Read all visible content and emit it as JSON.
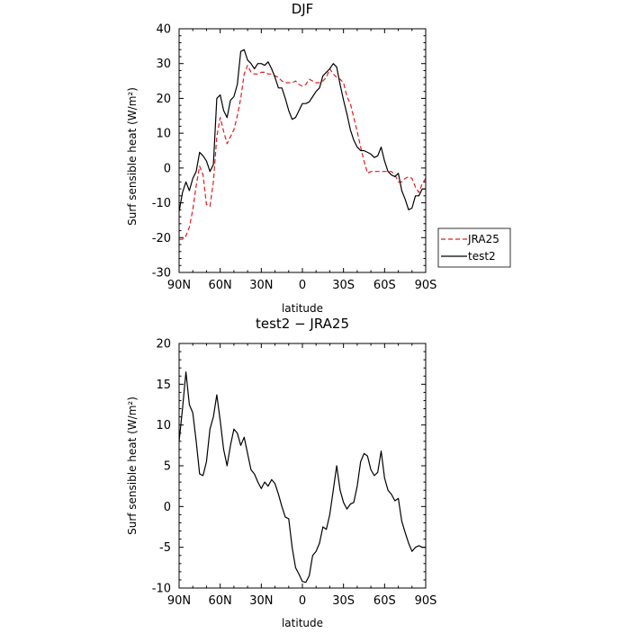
{
  "chart_data": [
    {
      "type": "line",
      "title": "DJF",
      "xlabel": "latitude",
      "ylabel": "Surf sensible heat (W/m²)",
      "xlim": [
        -90,
        90
      ],
      "ylim": [
        -30,
        40
      ],
      "xticks": [
        -90,
        -60,
        -30,
        0,
        30,
        60,
        90
      ],
      "xtick_labels": [
        "90N",
        "60N",
        "30N",
        "0",
        "30S",
        "60S",
        "90S"
      ],
      "yticks": [
        -30,
        -20,
        -10,
        0,
        10,
        20,
        30,
        40
      ],
      "ytick_labels": [
        "-30",
        "-20",
        "-10",
        "0",
        "10",
        "20",
        "30",
        "40"
      ],
      "legend_position": "outside right",
      "grid": false,
      "x": [
        -90,
        -87.5,
        -85,
        -82.5,
        -80,
        -77.5,
        -75,
        -72.5,
        -70,
        -67.5,
        -65,
        -62.5,
        -60,
        -57.5,
        -55,
        -52.5,
        -50,
        -47.5,
        -45,
        -42.5,
        -40,
        -37.5,
        -35,
        -32.5,
        -30,
        -27.5,
        -25,
        -22.5,
        -20,
        -17.5,
        -15,
        -12.5,
        -10,
        -7.5,
        -5,
        -2.5,
        0,
        2.5,
        5,
        7.5,
        10,
        12.5,
        15,
        17.5,
        20,
        22.5,
        25,
        27.5,
        30,
        32.5,
        35,
        37.5,
        40,
        42.5,
        45,
        47.5,
        50,
        52.5,
        55,
        57.5,
        60,
        62.5,
        65,
        67.5,
        70,
        72.5,
        75,
        77.5,
        80,
        82.5,
        85,
        87.5,
        90
      ],
      "series": [
        {
          "name": "JRA25",
          "color": "#e41a1c",
          "dash": "dashed",
          "values": [
            -20.5,
            -20.5,
            -19.5,
            -17,
            -12,
            -5,
            0.5,
            -2,
            -10.5,
            -11,
            -4,
            9,
            14.5,
            10.5,
            7,
            9,
            11,
            15,
            20,
            27,
            29.5,
            27.5,
            27,
            27,
            27.5,
            27.5,
            27,
            27,
            26.5,
            26,
            25,
            24.5,
            24.5,
            24.5,
            25,
            24,
            23.5,
            24,
            25.5,
            25,
            24.5,
            24.5,
            25,
            26,
            28.5,
            27,
            26,
            25.5,
            24.5,
            20.5,
            18.5,
            14.5,
            10.5,
            6,
            2,
            -1.5,
            -1,
            -1,
            -1,
            -1,
            -1,
            -1,
            -1,
            -2,
            -4,
            -4,
            -3,
            -2.5,
            -3,
            -5.5,
            -7,
            -4.5,
            -3
          ]
        },
        {
          "name": "test2",
          "color": "#000000",
          "dash": "solid",
          "values": [
            -12.5,
            -7,
            -4,
            -6.5,
            -3,
            -1,
            4.5,
            3.5,
            2,
            -1,
            1,
            20,
            21,
            16.5,
            14.5,
            19.5,
            20.5,
            24,
            33.5,
            34,
            31,
            30,
            28.5,
            30,
            30,
            29.5,
            30.5,
            28.5,
            26,
            23,
            23,
            20,
            16.5,
            14,
            14.5,
            16.5,
            18.5,
            18.5,
            19,
            20.5,
            22,
            23,
            26.5,
            27.5,
            28.5,
            30,
            29,
            24,
            19.5,
            15.5,
            11,
            8,
            6,
            5,
            5,
            4.5,
            4,
            3,
            3.5,
            6,
            2,
            -1,
            -2,
            -2.5,
            -1.5,
            -6.5,
            -9,
            -12,
            -11.5,
            -8,
            -8,
            -6,
            -6
          ]
        }
      ]
    },
    {
      "type": "line",
      "title": "test2 − JRA25",
      "xlabel": "latitude",
      "ylabel": "Surf sensible heat (W/m²)",
      "xlim": [
        -90,
        90
      ],
      "ylim": [
        -10,
        20
      ],
      "xticks": [
        -90,
        -60,
        -30,
        0,
        30,
        60,
        90
      ],
      "xtick_labels": [
        "90N",
        "60N",
        "30N",
        "0",
        "30S",
        "60S",
        "90S"
      ],
      "yticks": [
        -10,
        -5,
        0,
        5,
        10,
        15,
        20
      ],
      "ytick_labels": [
        "-10",
        "-5",
        "0",
        "5",
        "10",
        "15",
        "20"
      ],
      "grid": false,
      "x": [
        -90,
        -87.5,
        -85,
        -82.5,
        -80,
        -77.5,
        -75,
        -72.5,
        -70,
        -67.5,
        -65,
        -62.5,
        -60,
        -57.5,
        -55,
        -52.5,
        -50,
        -47.5,
        -45,
        -42.5,
        -40,
        -37.5,
        -35,
        -32.5,
        -30,
        -27.5,
        -25,
        -22.5,
        -20,
        -17.5,
        -15,
        -12.5,
        -10,
        -7.5,
        -5,
        -2.5,
        0,
        2.5,
        5,
        7.5,
        10,
        12.5,
        15,
        17.5,
        20,
        22.5,
        25,
        27.5,
        30,
        32.5,
        35,
        37.5,
        40,
        42.5,
        45,
        47.5,
        50,
        52.5,
        55,
        57.5,
        60,
        62.5,
        65,
        67.5,
        70,
        72.5,
        75,
        77.5,
        80,
        82.5,
        85,
        87.5,
        90
      ],
      "series": [
        {
          "color": "#000000",
          "dash": "solid",
          "values": [
            8,
            12,
            16.5,
            12.5,
            11.5,
            8,
            4,
            3.8,
            5.5,
            9.5,
            11,
            13.7,
            10.5,
            7,
            5,
            7.5,
            9.5,
            9,
            7.5,
            8.5,
            6.5,
            4.5,
            4,
            3,
            2.2,
            3,
            2.5,
            3.3,
            2.8,
            1.5,
            0,
            -1.3,
            -1.5,
            -5,
            -7.5,
            -8.3,
            -9.2,
            -9.3,
            -8.5,
            -6,
            -5.5,
            -4.5,
            -2.5,
            -2.8,
            -1,
            2,
            5,
            2,
            0.5,
            -0.3,
            0.3,
            0.5,
            2.5,
            5.5,
            6.5,
            6.2,
            4.5,
            3.8,
            4.2,
            6.8,
            3.5,
            2,
            1.5,
            0.7,
            1,
            -1.8,
            -3.2,
            -4.5,
            -5.5,
            -5,
            -4.8,
            -5,
            -5
          ]
        }
      ]
    }
  ]
}
